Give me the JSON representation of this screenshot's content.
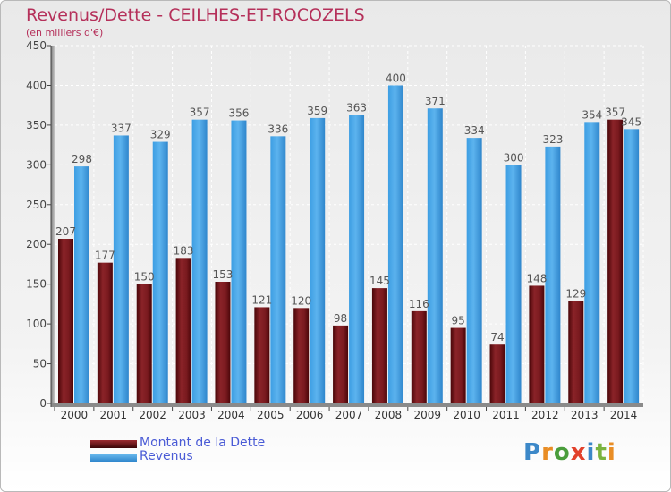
{
  "title": "Revenus/Dette - CEILHES-ET-ROCOZELS",
  "subtitle": "(en milliers d'€)",
  "legend": [
    {
      "label": "Montant de la Dette",
      "color": "#6b0e12"
    },
    {
      "label": "Revenus",
      "color": "#3d9ee3"
    }
  ],
  "logo": {
    "letters": [
      "P",
      "r",
      "o",
      "x",
      "i",
      "t",
      "i"
    ],
    "colors": [
      "#3c88c8",
      "#e98d25",
      "#4a9d3c",
      "#e2412b",
      "#3c88c8",
      "#7ab33f",
      "#e98d25"
    ]
  },
  "chart_data": {
    "type": "bar",
    "categories": [
      "2000",
      "2001",
      "2002",
      "2003",
      "2004",
      "2005",
      "2006",
      "2007",
      "2008",
      "2009",
      "2010",
      "2011",
      "2012",
      "2013",
      "2014"
    ],
    "series": [
      {
        "name": "Montant de la Dette",
        "values": [
          207,
          177,
          150,
          183,
          153,
          121,
          120,
          98,
          145,
          116,
          95,
          74,
          148,
          129,
          357
        ]
      },
      {
        "name": "Revenus",
        "values": [
          298,
          337,
          329,
          357,
          356,
          336,
          359,
          363,
          400,
          371,
          334,
          300,
          323,
          354,
          345
        ]
      }
    ],
    "ylim": [
      0,
      450
    ],
    "yticks": [
      0,
      50,
      100,
      150,
      200,
      250,
      300,
      350,
      400,
      450
    ],
    "grid": true
  }
}
